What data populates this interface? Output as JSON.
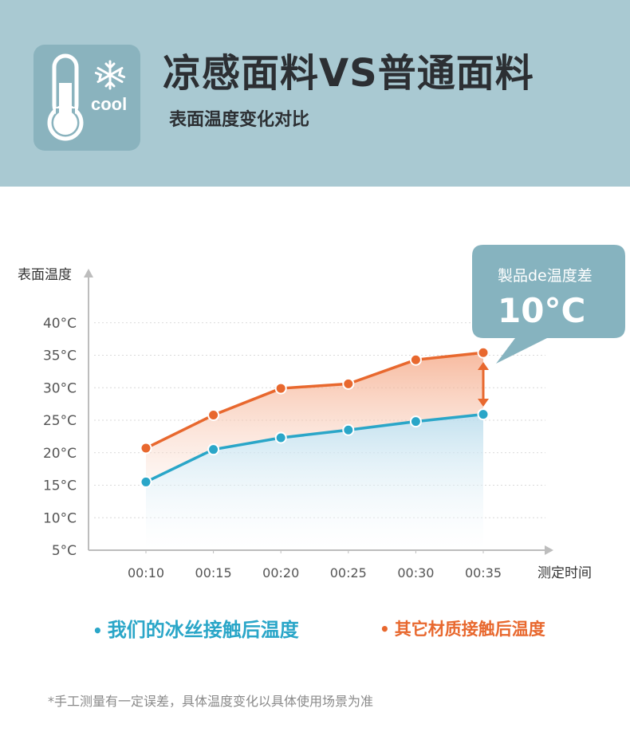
{
  "header": {
    "title": "凉感面料VS普通面料",
    "subtitle": "表面温度变化对比",
    "logo_text": "cool",
    "logo_icons": [
      "thermometer-icon",
      "snowflake-icon"
    ]
  },
  "callout": {
    "label": "製品de温度差",
    "value": "10°C"
  },
  "chart_data": {
    "type": "line",
    "ylabel": "表面温度",
    "xlabel": "测定时间",
    "categories": [
      "00:10",
      "00:15",
      "00:20",
      "00:25",
      "00:30",
      "00:35"
    ],
    "y_ticks": [
      "5°C",
      "10°C",
      "15°C",
      "20°C",
      "25°C",
      "30°C",
      "35°C",
      "40°C"
    ],
    "ylim": [
      5,
      40
    ],
    "grid": true,
    "series": [
      {
        "name": "我们的冰丝接触后温度",
        "values": [
          15.5,
          20.5,
          22.3,
          23.5,
          24.8,
          25.9
        ]
      },
      {
        "name": "其它材质接触后温度",
        "values": [
          20.7,
          25.8,
          29.9,
          30.6,
          34.3,
          35.4
        ]
      }
    ]
  },
  "legend": {
    "dot": "•",
    "items": [
      "我们的冰丝接触后温度",
      "其它材质接触后温度"
    ]
  },
  "footnote": "*手工测量有一定误差，具体温度变化以具体使用场景为准",
  "colors": {
    "header_bg": "#a9c9d2",
    "logo_bg": "#8ab3be",
    "callout_bg": "#86b3bf",
    "series_cool": "#2aa6c8",
    "series_other": "#e8682e"
  }
}
